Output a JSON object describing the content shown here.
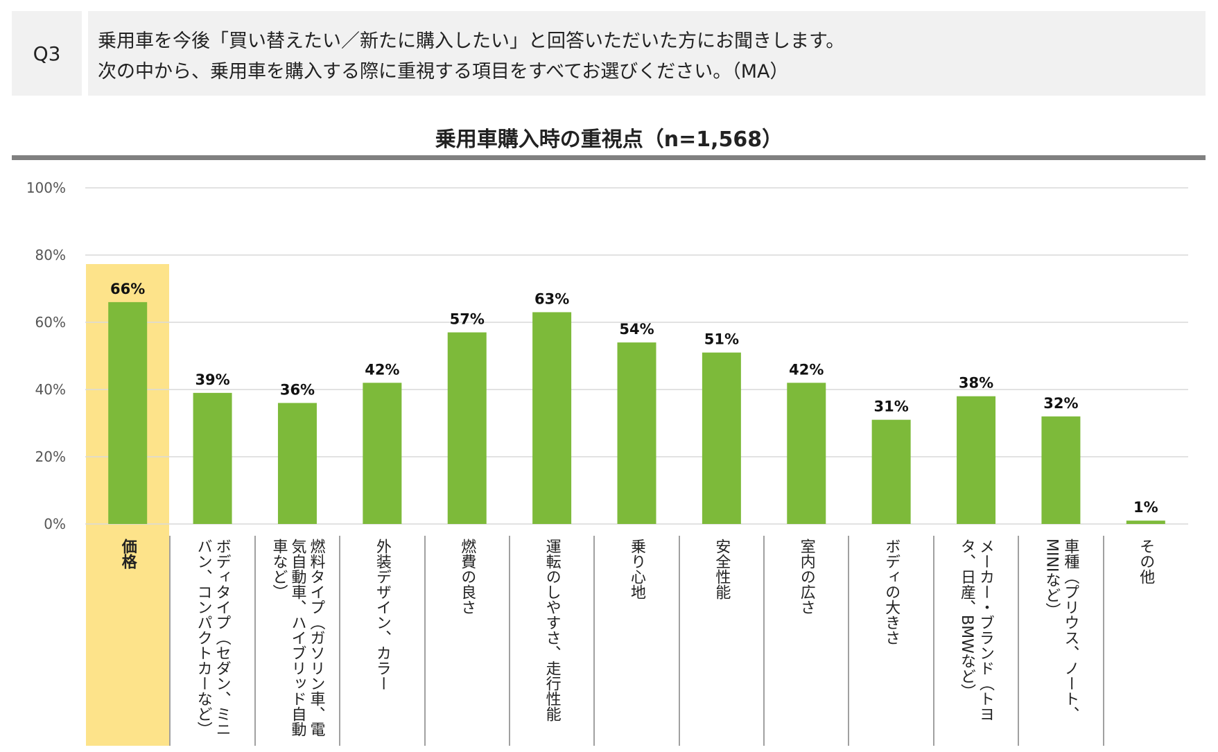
{
  "header": {
    "question_id": "Q3",
    "question_line1": "乗用車を今後「買い替えたい／新たに購入したい」と回答いただいた方にお聞きします。",
    "question_line2": "次の中から、乗用車を購入する際に重視する項目をすべてお選びください。（MA）"
  },
  "chart_data": {
    "type": "bar",
    "title": "乗用車購入時の重視点（n=1,568）",
    "categories": [
      "価格",
      "ボディタイプ（セダン、ミニバン、コンパクトカーなど）",
      "燃料タイプ（ガソリン車、電気自動車、ハイブリッド自動車など）",
      "外装デザイン、カラー",
      "燃費の良さ",
      "運転のしやすさ、走行性能",
      "乗り心地",
      "安全性能",
      "室内の広さ",
      "ボディの大きさ",
      "メーカー・ブランド（トヨタ、日産、BMWなど）",
      "車種（プリウス、ノート、MINIなど）",
      "その他"
    ],
    "values": [
      66,
      39,
      36,
      42,
      57,
      63,
      54,
      51,
      42,
      31,
      38,
      32,
      1
    ],
    "value_labels": [
      "66%",
      "39%",
      "36%",
      "42%",
      "57%",
      "63%",
      "54%",
      "51%",
      "42%",
      "31%",
      "38%",
      "32%",
      "1%"
    ],
    "ylim": [
      0,
      100
    ],
    "yticks": [
      "0%",
      "20%",
      "40%",
      "60%",
      "80%",
      "100%"
    ],
    "grid": true,
    "highlighted_category": "価格",
    "colors": {
      "bar": "#7dba3a",
      "highlight": "#fde38a",
      "grid": "#d9d9d9"
    }
  }
}
